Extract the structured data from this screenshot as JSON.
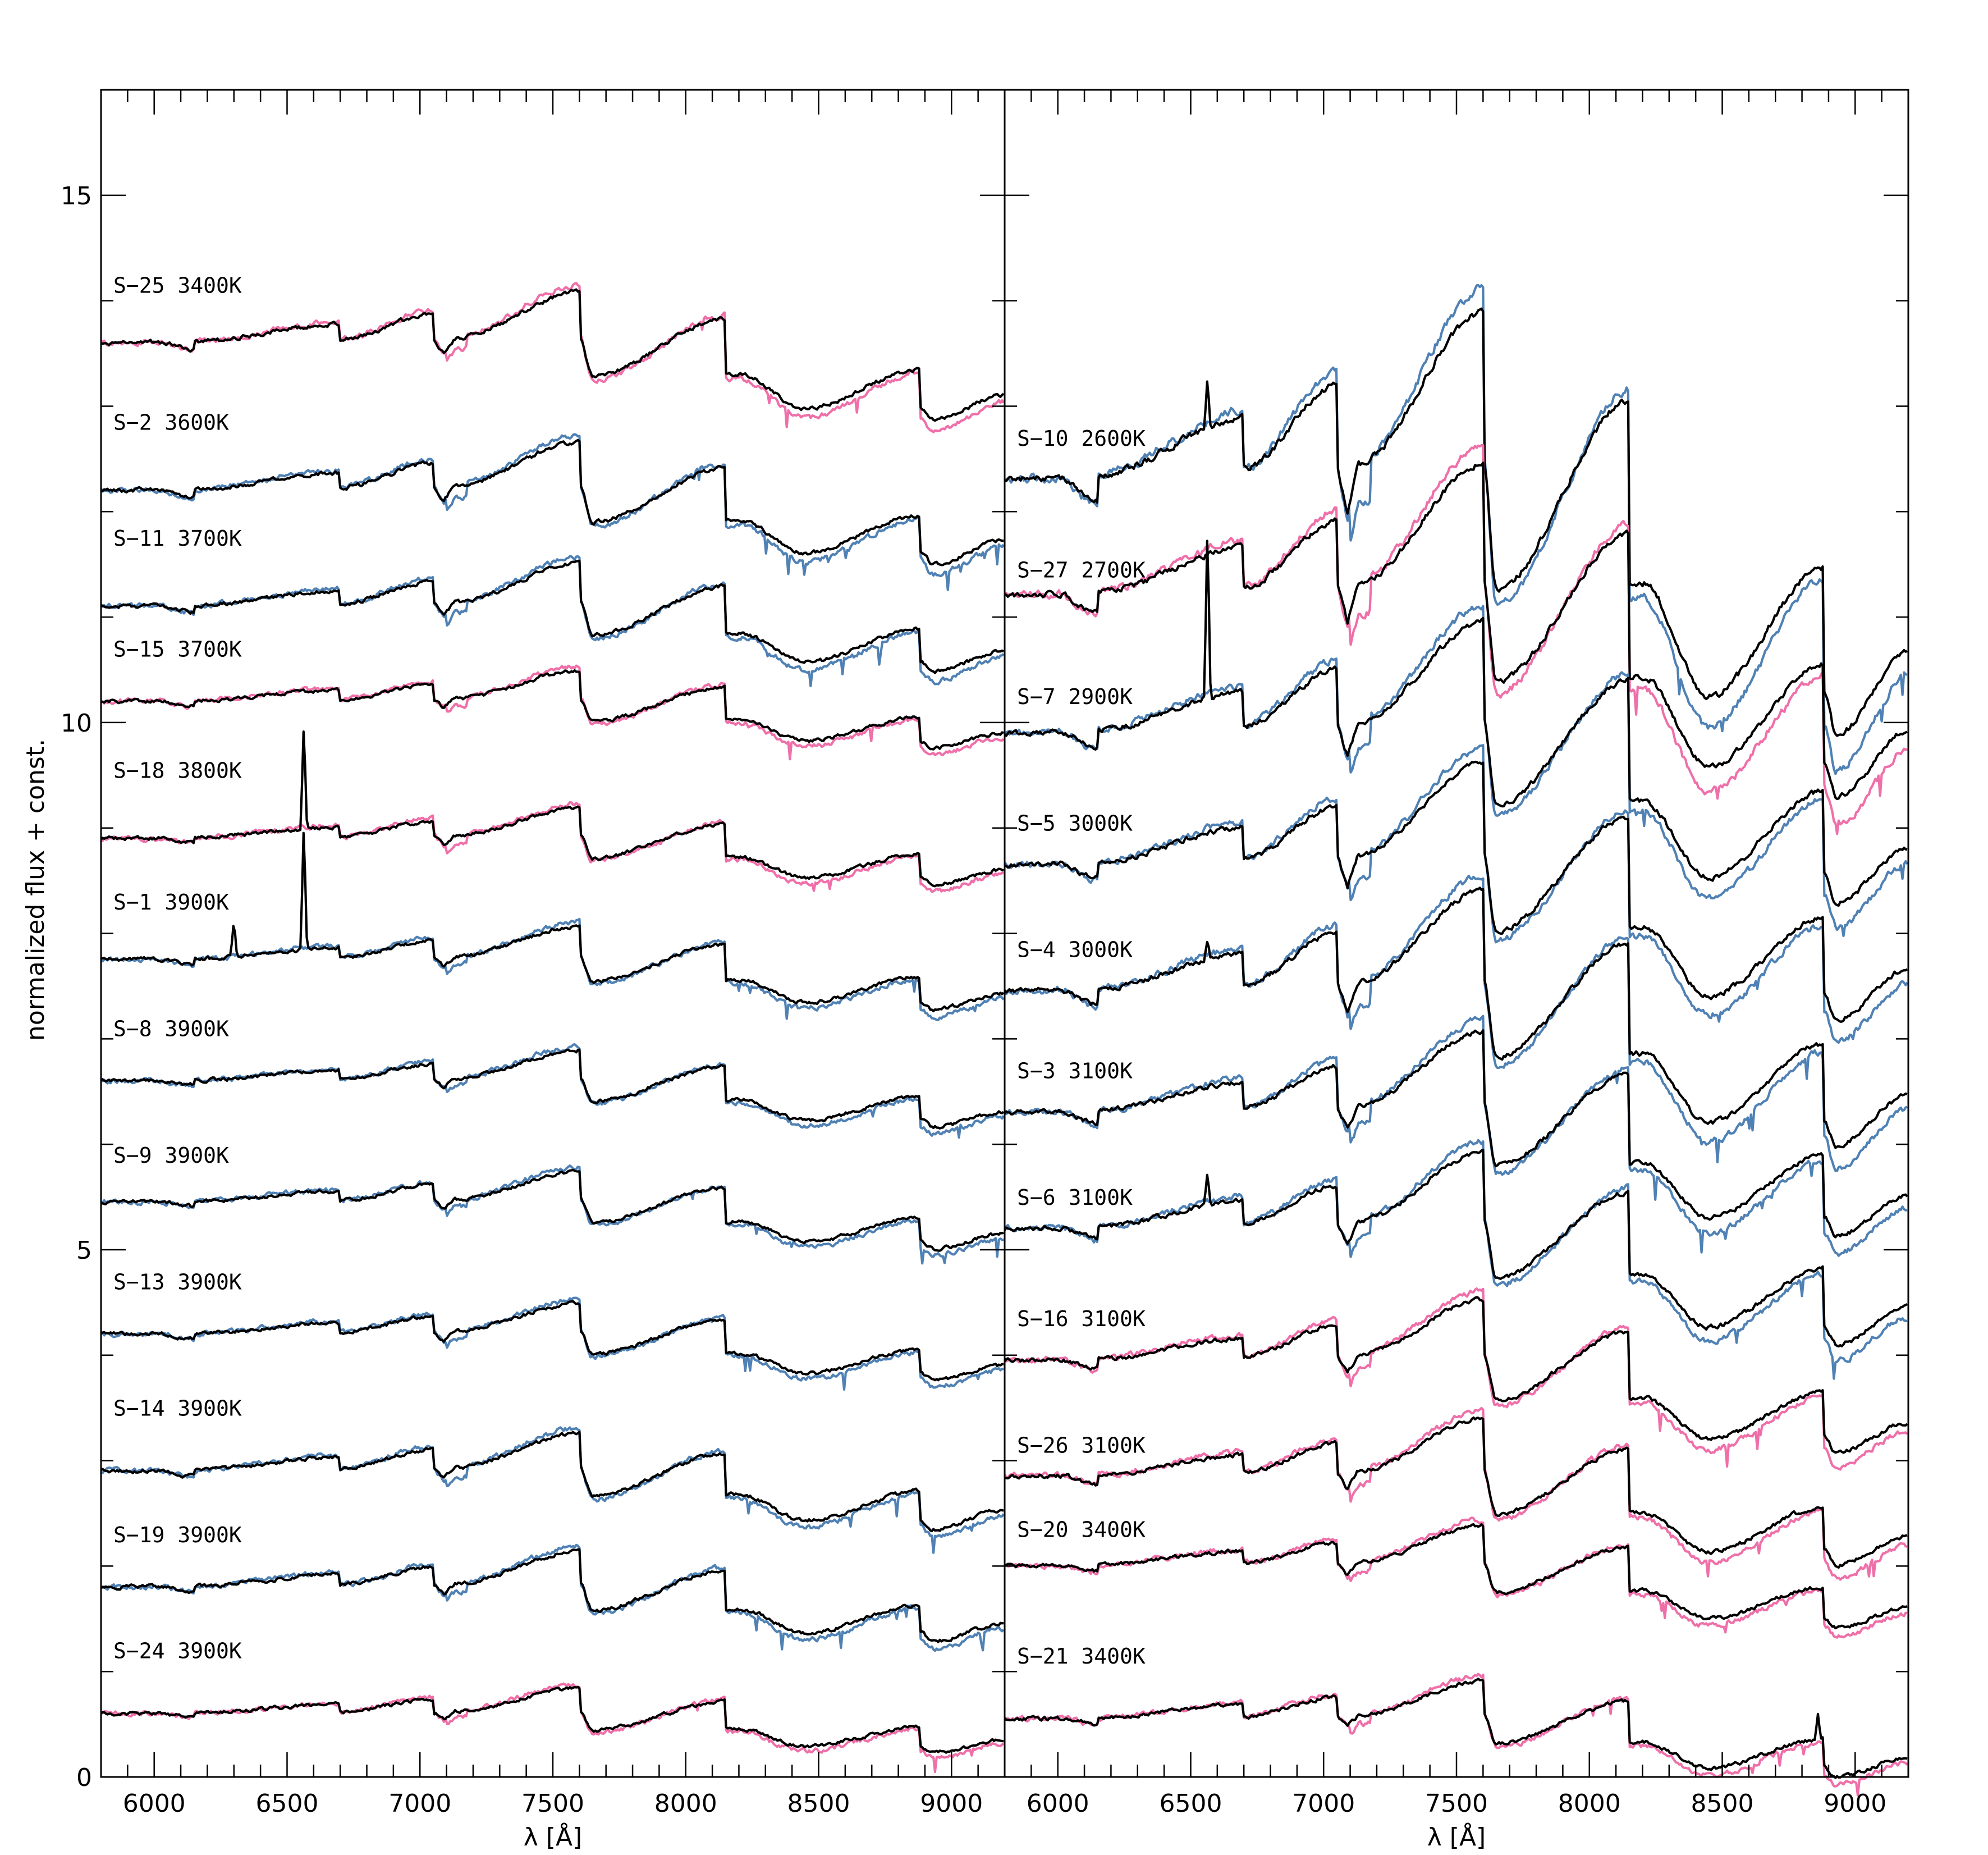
{
  "chart_data": {
    "type": "line",
    "ylabel": "normalized flux + const.",
    "x_range": [
      5800,
      9200
    ],
    "y_range": [
      0,
      16
    ],
    "y_ticks": [
      {
        "value": 0,
        "label": "0"
      },
      {
        "value": 5,
        "label": "5"
      },
      {
        "value": 10,
        "label": "10"
      },
      {
        "value": 15,
        "label": "15"
      }
    ],
    "series_colors": {
      "observed": "#000000",
      "model_blue": "#4f81b4",
      "model_pink": "#ef6fa9"
    },
    "panels": [
      {
        "xlabel": "λ [Å]",
        "x_ticks": [
          {
            "value": 6000,
            "label": "6000"
          },
          {
            "value": 6500,
            "label": "6500"
          },
          {
            "value": 7000,
            "label": "7000"
          },
          {
            "value": 7500,
            "label": "7500"
          },
          {
            "value": 8000,
            "label": "8000"
          },
          {
            "value": 8500,
            "label": "8500"
          },
          {
            "value": 9000,
            "label": "9000"
          }
        ],
        "spectra": [
          {
            "label": "S−25 3400K",
            "offset": 13.6,
            "label_y": 14.15,
            "model": "pink",
            "temp": 3400,
            "amp": 1.0
          },
          {
            "label": "S−2 3600K",
            "offset": 12.2,
            "label_y": 12.85,
            "model": "blue",
            "temp": 3600,
            "amp": 0.95
          },
          {
            "label": "S−11 3700K",
            "offset": 11.1,
            "label_y": 11.75,
            "model": "blue",
            "temp": 3700,
            "amp": 0.85
          },
          {
            "label": "S−15 3700K",
            "offset": 10.2,
            "label_y": 10.7,
            "model": "pink",
            "temp": 3700,
            "amp": 0.6
          },
          {
            "label": "S−18 3800K",
            "offset": 8.9,
            "label_y": 9.55,
            "model": "pink",
            "temp": 3800,
            "amp": 0.6,
            "emission": [
              [
                6563,
                1.0
              ]
            ]
          },
          {
            "label": "S−1 3900K",
            "offset": 7.75,
            "label_y": 8.3,
            "model": "blue",
            "temp": 3900,
            "amp": 0.65,
            "emission": [
              [
                6563,
                1.2
              ],
              [
                6300,
                0.35
              ]
            ]
          },
          {
            "label": "S−8 3900K",
            "offset": 6.6,
            "label_y": 7.1,
            "model": "blue",
            "temp": 3900,
            "amp": 0.6
          },
          {
            "label": "S−9 3900K",
            "offset": 5.45,
            "label_y": 5.9,
            "model": "blue",
            "temp": 3900,
            "amp": 0.6
          },
          {
            "label": "S−13 3900K",
            "offset": 4.2,
            "label_y": 4.7,
            "model": "blue",
            "temp": 3900,
            "amp": 0.6
          },
          {
            "label": "S−14 3900K",
            "offset": 2.9,
            "label_y": 3.5,
            "model": "blue",
            "temp": 3900,
            "amp": 0.75
          },
          {
            "label": "S−19 3900K",
            "offset": 1.8,
            "label_y": 2.3,
            "model": "blue",
            "temp": 3900,
            "amp": 0.7
          },
          {
            "label": "S−24 3900K",
            "offset": 0.6,
            "label_y": 1.2,
            "model": "pink",
            "temp": 3900,
            "amp": 0.5
          }
        ]
      },
      {
        "xlabel": "λ [Å]",
        "x_ticks": [
          {
            "value": 6000,
            "label": "6000"
          },
          {
            "value": 6500,
            "label": "6500"
          },
          {
            "value": 7000,
            "label": "7000"
          },
          {
            "value": 7500,
            "label": "7500"
          },
          {
            "value": 8000,
            "label": "8000"
          },
          {
            "value": 8500,
            "label": "8500"
          },
          {
            "value": 9000,
            "label": "9000"
          }
        ],
        "spectra": [
          {
            "label": "S−10 2600K",
            "offset": 12.3,
            "label_y": 12.7,
            "model": "blue",
            "temp": 2600,
            "amp": 3.3,
            "emission": [
              [
                6563,
                0.45
              ]
            ]
          },
          {
            "label": "S−27 2700K",
            "offset": 11.2,
            "label_y": 11.45,
            "model": "pink",
            "temp": 2700,
            "amp": 2.6
          },
          {
            "label": "S−7 2900K",
            "offset": 9.9,
            "label_y": 10.25,
            "model": "blue",
            "temp": 2900,
            "amp": 2.2,
            "emission": [
              [
                6563,
                1.6
              ]
            ]
          },
          {
            "label": "S−5 3000K",
            "offset": 8.65,
            "label_y": 9.05,
            "model": "blue",
            "temp": 3000,
            "amp": 2.0
          },
          {
            "label": "S−4 3000K",
            "offset": 7.45,
            "label_y": 7.85,
            "model": "blue",
            "temp": 3000,
            "amp": 2.0,
            "emission": [
              [
                6563,
                0.2
              ]
            ]
          },
          {
            "label": "S−3 3100K",
            "offset": 6.3,
            "label_y": 6.7,
            "model": "blue",
            "temp": 3100,
            "amp": 1.6
          },
          {
            "label": "S−6 3100K",
            "offset": 5.2,
            "label_y": 5.5,
            "model": "blue",
            "temp": 3100,
            "amp": 1.5,
            "emission": [
              [
                6563,
                0.3
              ]
            ]
          },
          {
            "label": "S−16 3100K",
            "offset": 3.95,
            "label_y": 4.35,
            "model": "pink",
            "temp": 3100,
            "amp": 1.2
          },
          {
            "label": "S−26 3100K",
            "offset": 2.85,
            "label_y": 3.15,
            "model": "pink",
            "temp": 3100,
            "amp": 1.15
          },
          {
            "label": "S−20 3400K",
            "offset": 2.0,
            "label_y": 2.35,
            "model": "pink",
            "temp": 3400,
            "amp": 0.8
          },
          {
            "label": "S−21 3400K",
            "offset": 0.55,
            "label_y": 1.15,
            "model": "pink",
            "temp": 3400,
            "amp": 0.75,
            "emission": [
              [
                8860,
                0.25
              ]
            ]
          }
        ]
      }
    ]
  }
}
